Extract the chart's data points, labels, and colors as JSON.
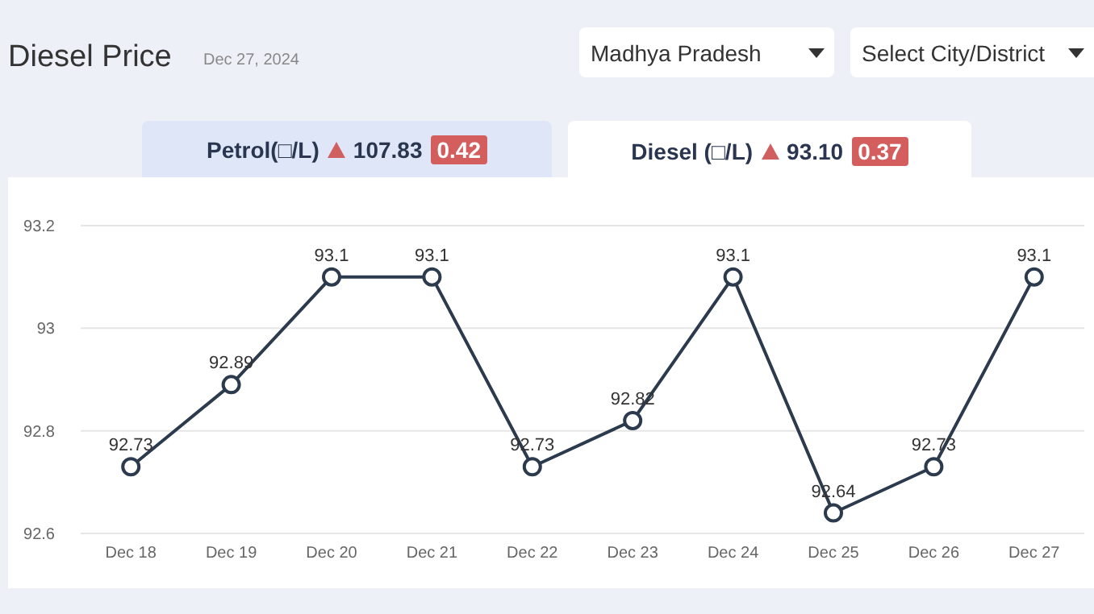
{
  "chart_data": {
    "type": "line",
    "title": "Diesel Price",
    "subtitle": "Dec 27, 2024",
    "annotations": [
      "Madhya Pradesh",
      "Select City/District",
      "Petrol(□/L)",
      "107.83",
      "0.42",
      "Diesel (□/L)",
      "93.10",
      "0.37"
    ],
    "categories": [
      "Dec 18",
      "Dec 19",
      "Dec 20",
      "Dec 21",
      "Dec 22",
      "Dec 23",
      "Dec 24",
      "Dec 25",
      "Dec 26",
      "Dec 27"
    ],
    "series": [
      {
        "color": "#2b3a4c",
        "values": [
          92.73,
          92.89,
          93.1,
          93.1,
          92.73,
          92.82,
          93.1,
          92.64,
          92.73,
          93.1
        ]
      }
    ],
    "ylim": [
      92.6,
      93.2
    ],
    "yticks": [
      92.6,
      92.8,
      93,
      93.2
    ],
    "grid": "y",
    "legend": false,
    "marker": "circle",
    "line_style": "solid",
    "data_labels": true
  }
}
